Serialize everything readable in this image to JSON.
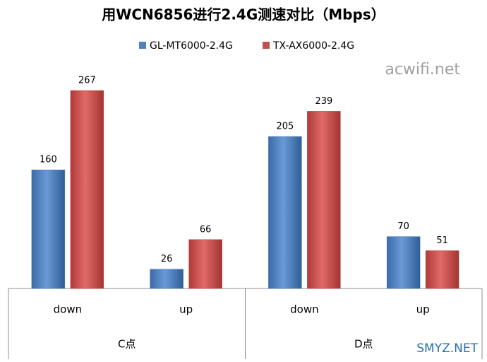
{
  "chart_data": {
    "type": "bar",
    "title": "用WCN6856进行2.4G测速对比（Mbps）",
    "categories": [
      "down",
      "up",
      "down",
      "up"
    ],
    "groups": [
      "C点",
      "D点"
    ],
    "series": [
      {
        "name": "GL-MT6000-2.4G",
        "color": "#4f81bd",
        "values": [
          160,
          26,
          205,
          70
        ]
      },
      {
        "name": "TX-AX6000-2.4G",
        "color": "#c0504d",
        "values": [
          267,
          66,
          239,
          51
        ]
      }
    ],
    "legend": "top",
    "watermarks": [
      "acwifi.net",
      "SMYZ.NET"
    ]
  }
}
